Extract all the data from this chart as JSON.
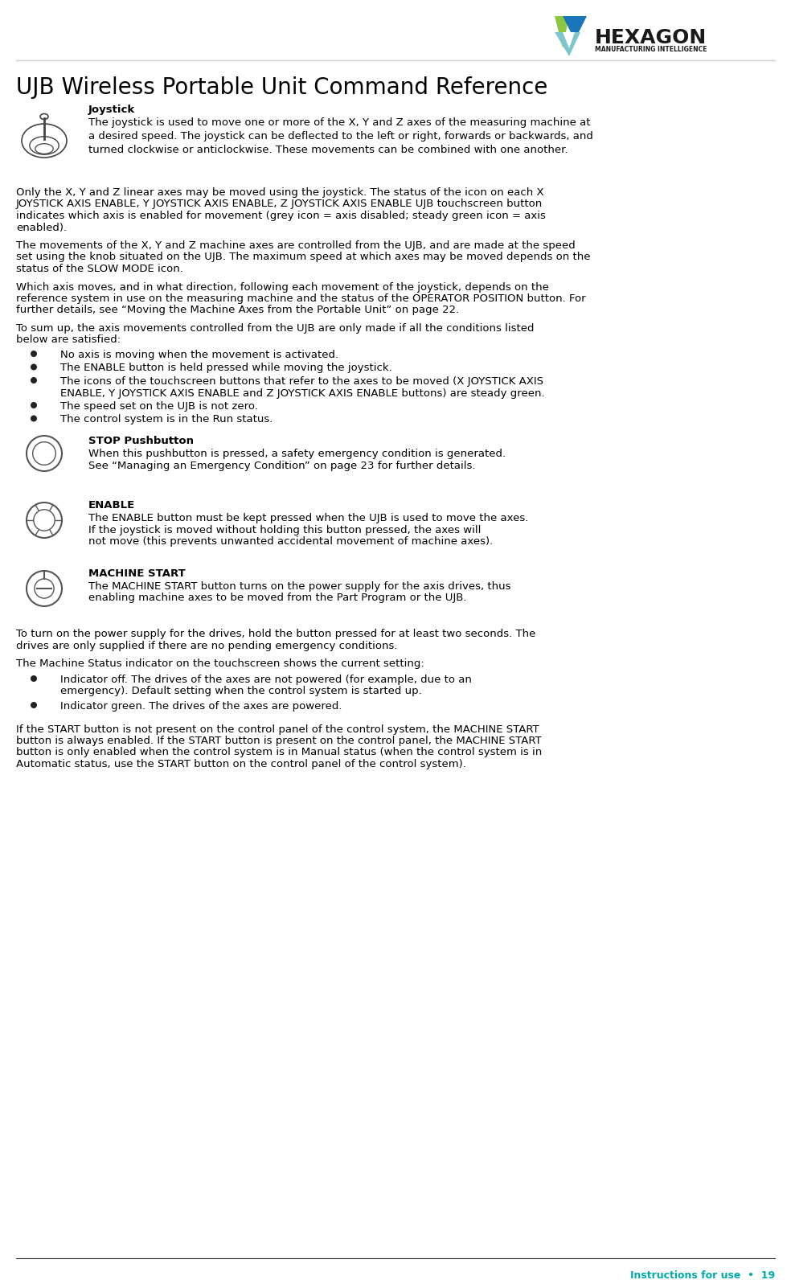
{
  "title": "UJB Wireless Portable Unit Command Reference",
  "footer_text": "Instructions for use  •  19",
  "footer_color": "#00AAAA",
  "background_color": "#ffffff",
  "title_fontsize": 20,
  "body_fontsize": 9.5,
  "heading_fontsize": 9.5,
  "sections": [
    {
      "heading": "Joystick",
      "has_icon": true,
      "icon_type": "joystick",
      "paragraphs": [
        "The joystick is used to move one or more of the X, Y and Z axes of the measuring machine at a desired speed. The joystick can be deflected to the left or right, forwards or backwards, and turned clockwise or anticlockwise. These movements can be combined with one another.",
        "",
        "Only  the  X,  Y  and  Z  linear  axes  may  be  moved  using  the  joystick.  The  status  of  the  icon  on  each  X JOYSTICK AXIS ENABLE, Y JOYSTICK AXIS ENABLE, Z JOYSTICK AXIS ENABLE UJB touchscreen button indicates which axis is enabled for movement (grey icon  = axis disabled; steady green icon = axis enabled).",
        "The movements of the X, Y and Z machine axes are controlled from the UJB, and are made at the speed set using the knob situated on the UJB. The maximum speed at which axes may be moved depends on the status of the SLOW MODE icon.",
        "Which axis moves, and in what direction, following each movement of the joystick, depends on the reference system in use on the measuring machine and the status of the OPERATOR POSITION button. For further details, see “Moving the Machine Axes from the Portable Unit” on page 22.",
        "To sum up, the axis movements controlled from the UJB are only made if all the conditions listed below are satisfied:"
      ],
      "bullets": [
        "No axis is moving when the movement is activated.",
        "The ENABLE button is held pressed while moving the joystick.",
        "The  icons  of  the  touchscreen  buttons  that  refer  to  the  axes  to  be  moved  (X  JOYSTICK  AXIS ENABLE, Y JOYSTICK AXIS ENABLE and Z JOYSTICK AXIS ENABLE buttons) are steady green.",
        "The speed set on the UJB is not zero.",
        "The control system is in the Run status."
      ]
    },
    {
      "heading": "STOP Pushbutton",
      "has_icon": true,
      "icon_type": "stop",
      "paragraphs": [
        "When this pushbutton is pressed, a safety emergency condition is generated. See “Managing an Emergency Condition” on page 23 for further details."
      ]
    },
    {
      "heading": "ENABLE",
      "has_icon": true,
      "icon_type": "enable",
      "paragraphs": [
        "The ENABLE button must be kept pressed when the UJB is used to move the axes. If the joystick is moved without holding this button pressed, the axes will not move (this prevents unwanted accidental movement of machine axes)."
      ]
    },
    {
      "heading": "MACHINE START",
      "has_icon": true,
      "icon_type": "start",
      "paragraphs": [
        "The MACHINE START button turns on the power supply for the axis drives, thus enabling machine axes to be moved from the Part Program or the UJB."
      ]
    }
  ],
  "after_sections": [
    "To turn on the power supply for the drives, hold the button pressed for at least two seconds. The drives are only supplied if there are no pending emergency conditions.",
    "The Machine Status indicator on the touchscreen shows the current setting:"
  ],
  "final_bullets": [
    "Indicator off. The drives of the axes are not powered (for example, due to an emergency). Default setting when the control system is started up.",
    "Indicator green. The drives of the axes are powered."
  ],
  "final_paragraph": "If the START button is not present on the control panel of the control system, the MACHINE START button is always enabled. If the START button is present on the control panel, the MACHINE START button is only enabled when the control system is in Manual status (when the control system is in Automatic status, use the START button on the control panel of the control system)."
}
